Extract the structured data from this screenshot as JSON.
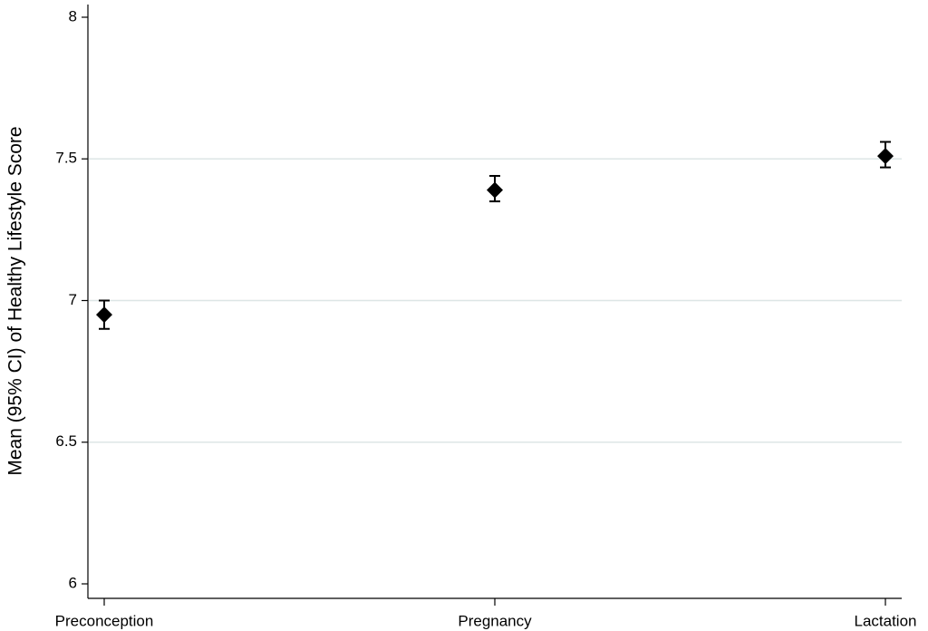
{
  "chart_data": {
    "type": "errorbar",
    "y_label": "Mean (95% CI) of Healthy Lifestyle Score",
    "categories": [
      "Preconception",
      "Pregnancy",
      "Lactation"
    ],
    "values": [
      6.95,
      7.39,
      7.51
    ],
    "ci_lower": [
      6.9,
      7.35,
      7.47
    ],
    "ci_upper": [
      7.0,
      7.44,
      7.56
    ],
    "color": "#000000",
    "ylim": [
      6,
      8
    ],
    "yticks": [
      6,
      6.5,
      7,
      7.5,
      8
    ],
    "grid": true
  }
}
